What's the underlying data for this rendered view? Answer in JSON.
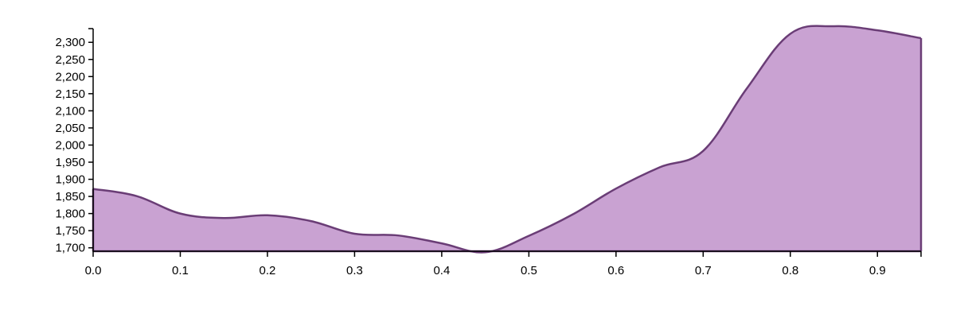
{
  "chart_data": {
    "type": "area",
    "title": "",
    "xlabel": "",
    "ylabel": "",
    "x": [
      0.0,
      0.05,
      0.1,
      0.15,
      0.2,
      0.25,
      0.3,
      0.35,
      0.4,
      0.45,
      0.5,
      0.55,
      0.6,
      0.65,
      0.7,
      0.75,
      0.8,
      0.85,
      0.9,
      0.95
    ],
    "series": [
      {
        "values": [
          1872,
          1851,
          1800,
          1787,
          1795,
          1778,
          1741,
          1736,
          1713,
          1687,
          1735,
          1797,
          1873,
          1935,
          1983,
          2165,
          2325,
          2347,
          2335,
          2312
        ]
      }
    ],
    "xlim": [
      0,
      0.95
    ],
    "ylim": [
      1690,
      2340
    ],
    "x_ticks": [
      "0.0",
      "0.1",
      "0.2",
      "0.3",
      "0.4",
      "0.5",
      "0.6",
      "0.7",
      "0.8",
      "0.9"
    ],
    "y_ticks": [
      "1,700",
      "1,750",
      "1,800",
      "1,850",
      "1,900",
      "1,950",
      "2,000",
      "2,050",
      "2,100",
      "2,150",
      "2,200",
      "2,250",
      "2,300"
    ],
    "grid": false,
    "colors": {
      "fill": "#c9a2d2",
      "stroke": "#6a3d76"
    }
  }
}
